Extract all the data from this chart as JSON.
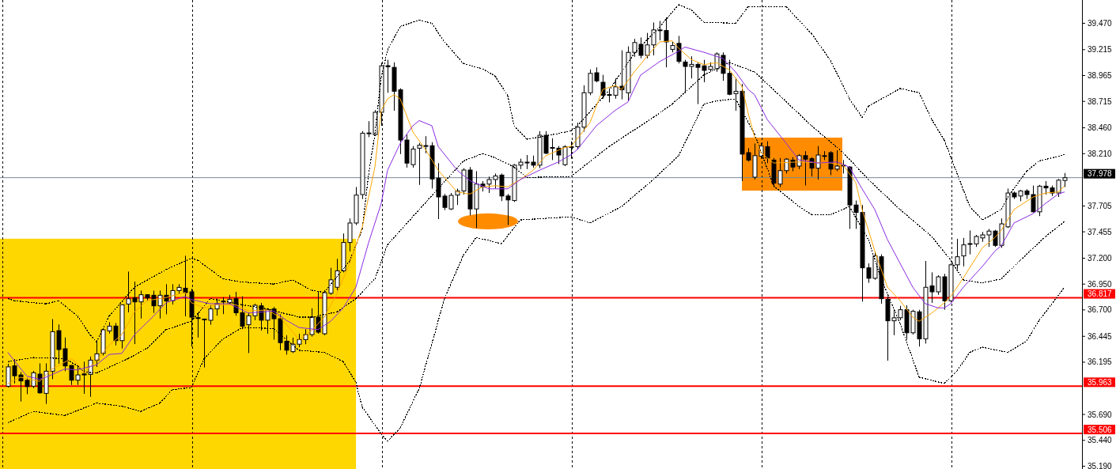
{
  "chart_data": {
    "type": "candlestick",
    "tick_labels": "y",
    "ylim": [
      35.163,
      39.695
    ],
    "yticks": [
      {
        "value": 39.47,
        "label": "39.470"
      },
      {
        "value": 39.215,
        "label": "39.215"
      },
      {
        "value": 38.965,
        "label": "38.965"
      },
      {
        "value": 38.715,
        "label": "38.715"
      },
      {
        "value": 38.46,
        "label": "38.460"
      },
      {
        "value": 38.21,
        "label": "38.210"
      },
      {
        "value": 37.705,
        "label": "37.705"
      },
      {
        "value": 37.455,
        "label": "37.455"
      },
      {
        "value": 37.2,
        "label": "37.200"
      },
      {
        "value": 36.95,
        "label": "36.950"
      },
      {
        "value": 36.7,
        "label": "36.700"
      },
      {
        "value": 36.445,
        "label": "36.445"
      },
      {
        "value": 36.195,
        "label": "36.195"
      },
      {
        "value": 35.69,
        "label": "35.690"
      },
      {
        "value": 35.44,
        "label": "35.440"
      },
      {
        "value": 35.19,
        "label": "35.190"
      }
    ],
    "categories": [
      null,
      null,
      null,
      null,
      null,
      null,
      null,
      null,
      null,
      null,
      null,
      null,
      null,
      null,
      null,
      null,
      null,
      null,
      null,
      null,
      null,
      null,
      null,
      null,
      null,
      null,
      null,
      null,
      null,
      null,
      null,
      null,
      null,
      null,
      null,
      null,
      null,
      null,
      null,
      null,
      null,
      null,
      null,
      null,
      null,
      null,
      null,
      null,
      null,
      null,
      null,
      null,
      null,
      null,
      null,
      null,
      null,
      null,
      null,
      null,
      null,
      null,
      null,
      null,
      null,
      null,
      null,
      null,
      null,
      null,
      null,
      null,
      null,
      null,
      null,
      null,
      null,
      null,
      null,
      null,
      null,
      null,
      null,
      null,
      null,
      null,
      null,
      null,
      null,
      null,
      null,
      null,
      null,
      null,
      null,
      null,
      null,
      null,
      null,
      null,
      null,
      null,
      null,
      null,
      null,
      null,
      null,
      null,
      null,
      null,
      null,
      null,
      null,
      null,
      null,
      null,
      null,
      null,
      null,
      null,
      null,
      null,
      null,
      null,
      null,
      null,
      null,
      null,
      null,
      null,
      null,
      null,
      null,
      null,
      null,
      null,
      null,
      null,
      null,
      null,
      null,
      null,
      null,
      null,
      null,
      null,
      null,
      null,
      null,
      null,
      null,
      null,
      null,
      null,
      null,
      null,
      null,
      null,
      null,
      null,
      null,
      null,
      null,
      null,
      null,
      null,
      null,
      null
    ],
    "ohlc": [
      [
        35.963,
        36.18,
        35.95,
        36.15
      ],
      [
        36.16,
        36.225,
        35.99,
        36.064
      ],
      [
        36.072,
        36.1,
        35.815,
        36.014
      ],
      [
        36.02,
        36.044,
        35.886,
        35.96
      ],
      [
        35.963,
        36.11,
        35.945,
        36.093
      ],
      [
        36.08,
        36.184,
        35.89,
        35.899
      ],
      [
        35.894,
        36.184,
        35.792,
        36.108
      ],
      [
        36.108,
        36.612,
        36.031,
        36.49
      ],
      [
        36.5,
        36.56,
        36.18,
        36.317
      ],
      [
        36.325,
        36.434,
        36.108,
        36.159
      ],
      [
        36.164,
        36.164,
        35.975,
        36.021
      ],
      [
        36.021,
        36.159,
        35.975,
        36.072
      ],
      [
        36.082,
        36.2,
        35.889,
        36.072
      ],
      [
        36.077,
        36.25,
        35.86,
        36.215
      ],
      [
        36.215,
        36.388,
        36.149,
        36.276
      ],
      [
        36.281,
        36.515,
        36.26,
        36.508
      ],
      [
        36.498,
        36.582,
        36.472,
        36.544
      ],
      [
        36.544,
        36.574,
        36.357,
        36.403
      ],
      [
        36.403,
        36.75,
        36.327,
        36.75
      ],
      [
        36.757,
        37.071,
        36.676,
        36.808
      ],
      [
        36.816,
        36.974,
        36.37,
        36.778
      ],
      [
        36.778,
        36.887,
        36.617,
        36.847
      ],
      [
        36.847,
        36.852,
        36.79,
        36.816
      ],
      [
        36.842,
        36.887,
        36.671,
        36.74
      ],
      [
        36.74,
        36.887,
        36.617,
        36.842
      ],
      [
        36.842,
        36.949,
        36.658,
        36.786
      ],
      [
        36.79,
        36.949,
        36.752,
        36.887
      ],
      [
        36.887,
        36.949,
        36.854,
        36.918
      ],
      [
        36.91,
        37.224,
        36.638,
        36.867
      ],
      [
        36.875,
        36.904,
        36.346,
        36.63
      ],
      [
        36.625,
        36.673,
        36.433,
        36.62
      ],
      [
        36.612,
        36.615,
        36.144,
        36.606
      ],
      [
        36.6,
        36.745,
        36.557,
        36.71
      ],
      [
        36.71,
        36.81,
        36.644,
        36.76
      ],
      [
        36.78,
        36.823,
        36.66,
        36.785
      ],
      [
        36.768,
        36.846,
        36.76,
        36.803
      ],
      [
        36.809,
        36.875,
        36.644,
        36.673
      ],
      [
        36.673,
        36.832,
        36.514,
        36.543
      ],
      [
        36.557,
        36.673,
        36.283,
        36.644
      ],
      [
        36.644,
        36.76,
        36.601,
        36.745
      ],
      [
        36.74,
        36.768,
        36.5,
        36.601
      ],
      [
        36.601,
        36.716,
        36.47,
        36.702
      ],
      [
        36.71,
        36.73,
        36.413,
        36.615
      ],
      [
        36.615,
        36.658,
        36.311,
        36.384
      ],
      [
        36.398,
        36.456,
        36.268,
        36.311
      ],
      [
        36.297,
        36.433,
        36.283,
        36.369
      ],
      [
        36.369,
        36.47,
        36.34,
        36.413
      ],
      [
        36.413,
        36.514,
        36.369,
        36.462
      ],
      [
        36.462,
        36.716,
        36.442,
        36.63
      ],
      [
        36.63,
        36.875,
        36.47,
        36.485
      ],
      [
        36.47,
        36.89,
        36.456,
        36.867
      ],
      [
        36.861,
        37.107,
        36.846,
        36.991
      ],
      [
        36.919,
        37.194,
        36.89,
        37.078
      ],
      [
        37.078,
        37.439,
        37.063,
        37.352
      ],
      [
        37.352,
        37.584,
        37.266,
        37.54
      ],
      [
        37.54,
        37.888,
        37.52,
        37.81
      ],
      [
        37.815,
        38.428,
        37.772,
        38.408
      ],
      [
        38.408,
        38.524,
        38.37,
        38.41
      ],
      [
        38.394,
        38.631,
        38.38,
        38.61
      ],
      [
        38.61,
        39.088,
        38.48,
        39.059
      ],
      [
        39.06,
        39.117,
        38.798,
        39.05
      ],
      [
        39.044,
        39.093,
        38.625,
        38.813
      ],
      [
        38.827,
        38.842,
        38.206,
        38.342
      ],
      [
        38.342,
        38.394,
        38.075,
        38.119
      ],
      [
        38.104,
        38.284,
        38.075,
        38.255
      ],
      [
        38.263,
        38.313,
        37.908,
        38.292
      ],
      [
        38.284,
        38.379,
        38.214,
        38.288
      ],
      [
        38.287,
        38.321,
        37.873,
        37.966
      ],
      [
        37.974,
        38.119,
        37.578,
        37.792
      ],
      [
        37.8,
        37.821,
        37.665,
        37.691
      ],
      [
        37.676,
        37.83,
        37.665,
        37.807
      ],
      [
        37.81,
        37.873,
        37.714,
        37.85
      ],
      [
        37.85,
        38.07,
        37.815,
        38.052
      ],
      [
        38.052,
        38.081,
        37.613,
        37.676
      ],
      [
        37.676,
        38.041,
        37.491,
        37.916
      ],
      [
        37.916,
        37.945,
        37.844,
        37.887
      ],
      [
        37.916,
        37.989,
        37.83,
        37.96
      ],
      [
        37.96,
        38.018,
        37.873,
        37.995
      ],
      [
        38.003,
        38.018,
        37.752,
        37.801
      ],
      [
        37.801,
        37.821,
        37.52,
        37.763
      ],
      [
        37.757,
        38.11,
        37.743,
        38.099
      ],
      [
        38.099,
        38.162,
        38.061,
        38.128
      ],
      [
        38.124,
        38.197,
        38.061,
        38.128
      ],
      [
        38.128,
        38.191,
        38.075,
        38.099
      ],
      [
        38.099,
        38.428,
        38.07,
        38.388
      ],
      [
        38.388,
        38.428,
        38.206,
        38.214
      ],
      [
        38.268,
        38.359,
        38.148,
        38.27
      ],
      [
        38.263,
        38.284,
        38.11,
        38.197
      ],
      [
        38.104,
        38.292,
        38.09,
        38.278
      ],
      [
        38.275,
        38.33,
        38.162,
        38.278
      ],
      [
        38.278,
        38.509,
        38.249,
        38.466
      ],
      [
        38.466,
        38.871,
        38.423,
        38.799
      ],
      [
        38.799,
        39.024,
        38.775,
        38.986
      ],
      [
        38.992,
        39.044,
        38.9,
        38.914
      ],
      [
        38.9,
        38.972,
        38.741,
        38.775
      ],
      [
        38.78,
        38.842,
        38.706,
        38.781
      ],
      [
        38.775,
        38.937,
        38.741,
        38.856
      ],
      [
        38.862,
        39.209,
        38.735,
        38.827
      ],
      [
        38.798,
        39.247,
        38.717,
        39.189
      ],
      [
        39.189,
        39.319,
        39.146,
        39.284
      ],
      [
        39.267,
        39.333,
        39.131,
        39.16
      ],
      [
        39.16,
        39.377,
        39.131,
        39.261
      ],
      [
        39.261,
        39.478,
        39.16,
        39.406
      ],
      [
        39.405,
        39.493,
        39.305,
        39.406
      ],
      [
        39.4,
        39.527,
        39.044,
        39.29
      ],
      [
        39.218,
        39.29,
        39.189,
        39.255
      ],
      [
        39.276,
        39.348,
        39.082,
        39.102
      ],
      [
        39.096,
        39.117,
        38.793,
        39.053
      ],
      [
        39.053,
        39.151,
        38.937,
        39.073
      ],
      [
        39.073,
        39.088,
        38.689,
        39.044
      ],
      [
        39.059,
        39.117,
        38.9,
        39.015
      ],
      [
        39.024,
        39.093,
        39.001,
        39.053
      ],
      [
        39.03,
        39.189,
        39.001,
        39.174
      ],
      [
        39.16,
        39.189,
        38.914,
        38.986
      ],
      [
        38.986,
        39.117,
        38.775,
        38.784
      ],
      [
        38.79,
        38.943,
        38.625,
        38.813
      ],
      [
        38.813,
        38.885,
        37.945,
        38.206
      ],
      [
        38.22,
        38.264,
        38.133,
        38.148
      ],
      [
        37.983,
        38.307,
        37.96,
        38.191
      ],
      [
        38.186,
        38.313,
        38.162,
        38.284
      ],
      [
        38.278,
        38.33,
        38.119,
        38.168
      ],
      [
        38.148,
        38.168,
        37.887,
        37.925
      ],
      [
        37.916,
        38.168,
        37.887,
        38.046
      ],
      [
        38.046,
        38.168,
        38.018,
        38.157
      ],
      [
        38.148,
        38.177,
        38.041,
        38.081
      ],
      [
        38.09,
        38.206,
        38.061,
        38.191
      ],
      [
        38.191,
        38.235,
        37.902,
        38.157
      ],
      [
        38.162,
        38.177,
        37.989,
        38.07
      ],
      [
        38.07,
        38.284,
        37.96,
        38.197
      ],
      [
        38.19,
        38.235,
        38.148,
        38.191
      ],
      [
        38.22,
        38.235,
        38.003,
        38.061
      ],
      [
        38.061,
        38.243,
        38.041,
        38.09
      ],
      [
        38.099,
        38.148,
        38.018,
        38.098
      ],
      [
        38.081,
        38.09,
        37.483,
        37.714
      ],
      [
        37.714,
        37.757,
        37.483,
        37.642
      ],
      [
        37.642,
        37.714,
        36.78,
        37.107
      ],
      [
        37.107,
        37.15,
        36.962,
        37.006
      ],
      [
        37.006,
        37.266,
        36.991,
        37.222
      ],
      [
        37.214,
        37.237,
        36.76,
        36.809
      ],
      [
        36.803,
        36.832,
        36.21,
        36.595
      ],
      [
        36.595,
        36.702,
        36.456,
        36.624
      ],
      [
        36.624,
        36.74,
        36.601,
        36.702
      ],
      [
        36.702,
        36.745,
        36.413,
        36.479
      ],
      [
        36.479,
        36.702,
        36.462,
        36.687
      ],
      [
        36.682,
        36.702,
        36.346,
        36.421
      ],
      [
        36.421,
        37.173,
        36.375,
        36.919
      ],
      [
        36.933,
        37.063,
        36.768,
        36.875
      ],
      [
        36.875,
        37.035,
        36.846,
        37.02
      ],
      [
        37.02,
        37.049,
        36.702,
        36.788
      ],
      [
        36.788,
        37.15,
        36.774,
        37.136
      ],
      [
        37.136,
        37.387,
        37.092,
        37.214
      ],
      [
        37.222,
        37.396,
        37.121,
        37.329
      ],
      [
        37.338,
        37.468,
        37.237,
        37.341
      ],
      [
        37.338,
        37.425,
        37.309,
        37.41
      ],
      [
        37.396,
        37.454,
        37.358,
        37.425
      ],
      [
        37.425,
        37.483,
        37.309,
        37.462
      ],
      [
        37.462,
        37.474,
        37.309,
        37.324
      ],
      [
        37.324,
        37.584,
        37.3,
        37.532
      ],
      [
        37.503,
        37.873,
        37.491,
        37.83
      ],
      [
        37.83,
        37.844,
        37.772,
        37.792
      ],
      [
        37.801,
        37.859,
        37.751,
        37.85
      ],
      [
        37.85,
        37.867,
        37.772,
        37.815
      ],
      [
        37.815,
        37.902,
        37.642,
        37.648
      ],
      [
        37.648,
        37.908,
        37.607,
        37.896
      ],
      [
        37.896,
        37.945,
        37.815,
        37.879
      ],
      [
        37.879,
        37.902,
        37.801,
        37.83
      ],
      [
        37.83,
        37.966,
        37.792,
        37.954
      ],
      [
        37.951,
        38.023,
        37.888,
        37.978
      ]
    ],
    "series": [
      {
        "type": "line",
        "color": "#000000",
        "line_style": "dotted",
        "values": [
          36.81,
          36.79,
          null,
          null,
          36.77,
          null,
          36.76,
          null,
          36.79,
          36.74,
          null,
          36.64,
          null,
          36.46,
          36.39,
          null,
          36.64,
          null,
          null,
          null,
          36.92,
          null,
          null,
          null,
          null,
          37.09,
          null,
          null,
          null,
          37.2,
          37.18,
          null,
          null,
          null,
          37.0,
          null,
          null,
          36.97,
          null,
          null,
          null,
          null,
          36.95,
          null,
          null,
          36.99,
          null,
          null,
          36.89,
          null,
          36.87,
          null,
          null,
          null,
          37.17,
          null,
          37.48,
          38.01,
          38.4,
          38.95,
          39.21,
          null,
          39.44,
          null,
          null,
          39.5,
          null,
          39.47,
          null,
          39.29,
          null,
          null,
          39.08,
          null,
          null,
          39.03,
          null,
          38.96,
          null,
          38.77,
          38.48,
          null,
          38.35,
          null,
          38.37,
          null,
          null,
          null,
          null,
          38.43,
          38.48,
          null,
          null,
          null,
          null,
          38.82,
          null,
          null,
          null,
          39.18,
          null,
          null,
          null,
          39.435,
          null,
          null,
          39.65,
          null,
          39.6,
          null,
          39.48,
          null,
          null,
          null,
          null,
          39.47,
          null,
          39.63,
          null,
          null,
          null,
          null,
          null,
          39.63,
          null,
          null,
          null,
          39.37,
          null,
          null,
          39.11,
          null,
          null,
          38.74,
          null,
          38.56,
          38.67,
          null,
          null,
          38.77,
          null,
          38.84,
          null,
          null,
          38.8,
          null,
          38.54,
          null,
          38.34,
          null,
          38.02,
          null,
          37.7,
          null,
          37.57,
          null,
          null,
          37.67,
          37.79,
          null,
          null,
          38.04,
          null,
          38.14,
          null,
          null,
          null,
          38.2
        ]
      },
      {
        "type": "line",
        "color": "#000000",
        "line_style": "dotted",
        "values": [
          36.2,
          null,
          null,
          null,
          36.24,
          null,
          null,
          null,
          null,
          36.23,
          null,
          36.16,
          36.1,
          null,
          36.09,
          null,
          null,
          null,
          null,
          36.23,
          null,
          null,
          36.33,
          null,
          null,
          36.51,
          null,
          null,
          null,
          36.59,
          null,
          null,
          36.81,
          null,
          null,
          null,
          null,
          36.75,
          null,
          null,
          null,
          36.71,
          null,
          null,
          null,
          null,
          36.63,
          null,
          36.63,
          null,
          null,
          null,
          36.68,
          null,
          null,
          36.81,
          null,
          null,
          37.0,
          null,
          37.33,
          null,
          null,
          null,
          null,
          37.67,
          null,
          null,
          null,
          null,
          null,
          null,
          38.14,
          null,
          null,
          38.21,
          null,
          38.17,
          null,
          null,
          38.08,
          null,
          37.98,
          null,
          null,
          null,
          null,
          null,
          null,
          37.99,
          null,
          null,
          null,
          null,
          null,
          38.28,
          null,
          null,
          null,
          null,
          null,
          null,
          38.56,
          null,
          null,
          38.69,
          null,
          null,
          null,
          null,
          38.97,
          null,
          null,
          null,
          39.09,
          null,
          null,
          null,
          39.0,
          null,
          null,
          null,
          38.77,
          null,
          null,
          null,
          null,
          38.48,
          null,
          null,
          null,
          null,
          38.22,
          null,
          null,
          null,
          37.96,
          null,
          null,
          null,
          null,
          37.67,
          null,
          null,
          null,
          null,
          37.41,
          null,
          null,
          37.18,
          null,
          36.99,
          null,
          null,
          36.96,
          null,
          null,
          37.0,
          null,
          null,
          37.18,
          null,
          null,
          null,
          37.41,
          null,
          null,
          37.555
        ]
      },
      {
        "type": "line",
        "color": "#000000",
        "line_style": "dotted",
        "values": [
          35.61,
          null,
          null,
          null,
          35.72,
          null,
          null,
          null,
          null,
          35.68,
          null,
          null,
          null,
          null,
          35.8,
          null,
          null,
          null,
          35.77,
          null,
          null,
          35.72,
          null,
          null,
          35.8,
          null,
          35.93,
          null,
          null,
          35.95,
          null,
          36.23,
          null,
          null,
          36.42,
          null,
          null,
          36.53,
          null,
          null,
          null,
          null,
          36.52,
          null,
          null,
          null,
          36.31,
          null,
          null,
          null,
          36.29,
          null,
          null,
          36.2,
          null,
          36.0,
          35.76,
          null,
          null,
          35.5,
          35.43,
          null,
          35.56,
          null,
          null,
          35.94,
          null,
          null,
          null,
          36.81,
          null,
          null,
          37.23,
          null,
          37.4,
          null,
          null,
          null,
          37.34,
          null,
          null,
          37.57,
          null,
          null,
          null,
          null,
          null,
          null,
          null,
          37.6,
          null,
          null,
          37.54,
          null,
          null,
          null,
          null,
          37.7,
          null,
          null,
          null,
          null,
          37.96,
          null,
          null,
          null,
          38.19,
          null,
          null,
          null,
          38.69,
          null,
          38.72,
          null,
          null,
          38.74,
          null,
          null,
          38.4,
          null,
          null,
          37.9,
          null,
          null,
          null,
          37.7,
          null,
          37.62,
          null,
          null,
          37.62,
          null,
          null,
          37.7,
          null,
          null,
          37.38,
          null,
          37.0,
          null,
          null,
          36.57,
          null,
          null,
          36.05,
          null,
          null,
          null,
          35.99,
          null,
          36.11,
          null,
          36.29,
          null,
          36.34,
          null,
          null,
          null,
          36.29,
          null,
          null,
          36.4,
          null,
          36.6,
          null,
          null,
          null,
          36.92
        ]
      },
      {
        "type": "line",
        "color": "#ffa500",
        "line_style": "solid",
        "values": [
          35.99,
          null,
          36.05,
          null,
          null,
          36.01,
          null,
          36.13,
          null,
          null,
          36.23,
          36.18,
          36.09,
          null,
          36.21,
          null,
          36.36,
          null,
          36.46,
          null,
          36.68,
          null,
          36.79,
          null,
          null,
          36.82,
          null,
          null,
          36.87,
          36.77,
          null,
          36.72,
          null,
          36.75,
          null,
          null,
          36.75,
          null,
          36.69,
          null,
          null,
          36.7,
          null,
          36.63,
          null,
          36.49,
          36.41,
          null,
          36.5,
          null,
          36.63,
          null,
          36.86,
          null,
          37.15,
          null,
          37.5,
          null,
          38.08,
          38.63,
          38.74,
          38.78,
          38.74,
          null,
          38.42,
          null,
          38.25,
          null,
          38.05,
          null,
          null,
          37.84,
          null,
          37.82,
          null,
          37.89,
          null,
          37.9,
          null,
          37.89,
          null,
          37.96,
          null,
          38.05,
          null,
          38.19,
          null,
          null,
          38.27,
          38.28,
          null,
          null,
          38.51,
          null,
          38.83,
          null,
          38.87,
          38.83,
          null,
          39.0,
          null,
          39.15,
          null,
          39.29,
          null,
          39.3,
          39.23,
          null,
          39.12,
          null,
          39.07,
          null,
          39.09,
          null,
          39.02,
          null,
          38.86,
          38.6,
          38.37,
          38.22,
          null,
          38.12,
          null,
          null,
          null,
          38.13,
          null,
          null,
          null,
          null,
          38.12,
          null,
          38.1,
          null,
          37.93,
          37.67,
          null,
          37.27,
          null,
          36.92,
          null,
          36.79,
          null,
          36.63,
          36.59,
          null,
          36.67,
          null,
          36.77,
          36.83,
          null,
          37.01,
          null,
          null,
          37.3,
          null,
          37.4,
          37.47,
          null,
          37.67,
          null,
          null,
          37.79,
          null,
          37.83,
          null,
          37.84,
          37.9
        ]
      },
      {
        "type": "line",
        "color": "#8a2be2",
        "line_style": "solid",
        "values": [
          36.29,
          36.21,
          null,
          36.06,
          null,
          36.03,
          36.05,
          null,
          null,
          36.13,
          null,
          36.12,
          null,
          null,
          36.17,
          null,
          36.27,
          null,
          36.28,
          null,
          36.46,
          null,
          null,
          36.64,
          null,
          36.77,
          null,
          null,
          36.83,
          36.8,
          null,
          null,
          36.76,
          null,
          null,
          36.76,
          null,
          null,
          36.67,
          null,
          null,
          null,
          36.69,
          null,
          36.6,
          null,
          36.53,
          null,
          null,
          36.51,
          null,
          36.59,
          null,
          36.72,
          null,
          36.92,
          null,
          37.35,
          null,
          37.73,
          38.05,
          null,
          38.31,
          null,
          38.48,
          38.53,
          null,
          38.48,
          38.28,
          null,
          null,
          38.05,
          null,
          37.95,
          null,
          null,
          37.87,
          null,
          null,
          37.87,
          null,
          37.96,
          null,
          null,
          38.05,
          null,
          null,
          38.13,
          null,
          38.2,
          38.25,
          null,
          null,
          38.48,
          null,
          null,
          38.63,
          null,
          38.71,
          null,
          38.97,
          null,
          null,
          39.1,
          null,
          null,
          39.2,
          39.24,
          null,
          null,
          39.19,
          null,
          null,
          39.13,
          null,
          39.0,
          null,
          38.83,
          38.78,
          null,
          38.54,
          null,
          null,
          38.31,
          null,
          38.15,
          null,
          null,
          38.12,
          null,
          null,
          38.13,
          null,
          38.08,
          null,
          37.87,
          null,
          37.67,
          null,
          37.38,
          null,
          37.15,
          null,
          36.92,
          null,
          36.76,
          null,
          36.72,
          36.72,
          36.76,
          null,
          36.92,
          null,
          null,
          37.12,
          null,
          37.27,
          37.32,
          null,
          37.54,
          null,
          null,
          37.63,
          null,
          37.73,
          null,
          37.82,
          37.84
        ]
      }
    ],
    "ref_lines": [
      {
        "axis": "y",
        "value": 37.978,
        "label": "37.978",
        "color": "#778899"
      },
      {
        "axis": "y",
        "value": 36.817,
        "label": "36.817",
        "color": "#ff0000"
      },
      {
        "axis": "y",
        "value": 35.963,
        "label": "35.963",
        "color": "#ff0000"
      },
      {
        "axis": "y",
        "value": 35.506,
        "label": "35.506",
        "color": "#ff0000"
      }
    ]
  }
}
